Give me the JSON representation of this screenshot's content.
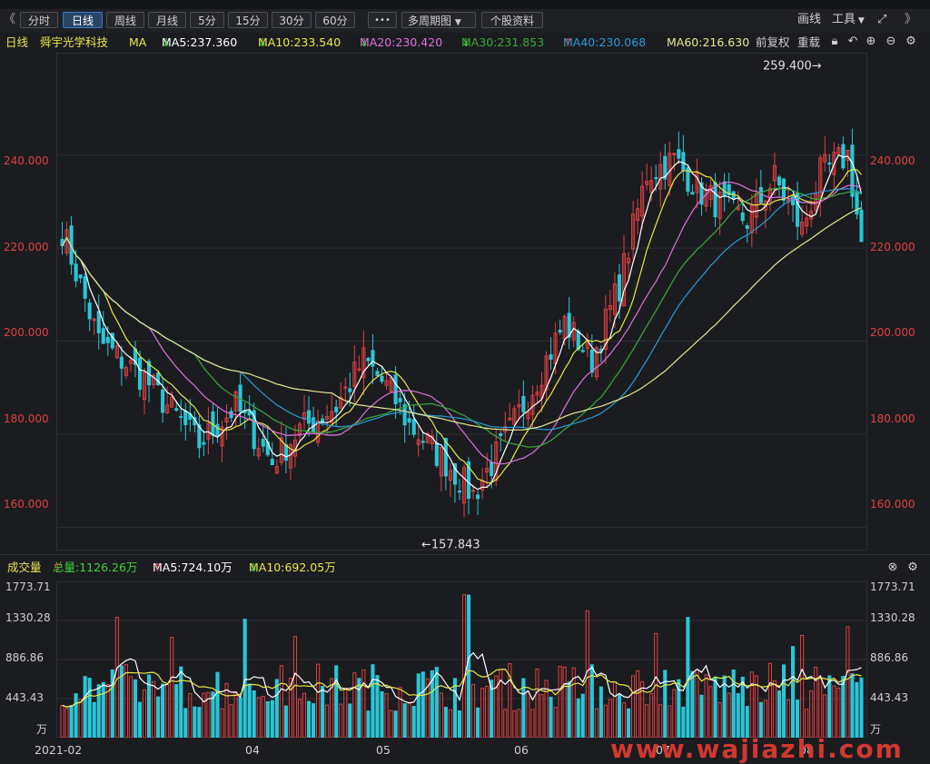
{
  "toolbar": {
    "collapse_icon": "double-chevron-left-icon",
    "buttons": [
      "分时",
      "日线",
      "周线",
      "月线",
      "5分",
      "15分",
      "30分",
      "60分",
      "•••",
      "多周期图",
      "个股资料"
    ],
    "active": "日线",
    "draw_label": "画线",
    "tools_label": "工具",
    "expand_icon": "expand-icon",
    "more_icon": "double-chevron-right-icon"
  },
  "info": {
    "period": "日线",
    "stock_name": "舜宇光学科技",
    "indicator": "MA",
    "ma5": "MA5:237.360",
    "ma10": "MA10:233.540",
    "ma20": "MA20:230.420",
    "ma30": "MA30:231.853",
    "ma40": "MA40:230.068",
    "ma60": "MA60:216.630",
    "adjust": "前复权",
    "overlay": "重载",
    "arrow_down": "↓",
    "arrow_up": "↑"
  },
  "volume": {
    "label": "成交量",
    "total": "总量:1126.26万",
    "ma5": "MA5:724.10万",
    "ma10": "MA10:692.05万",
    "arrow_up": "↑",
    "arrow_down": "↓",
    "unit": "万"
  },
  "price_axis": [
    "240.000",
    "220.000",
    "200.000",
    "180.000",
    "160.000"
  ],
  "volume_axis": [
    "1773.71",
    "1330.28",
    "886.86",
    "443.43"
  ],
  "date_axis": [
    "2021-02",
    "04",
    "05",
    "06",
    "07",
    "08"
  ],
  "annotations": {
    "high": "259.400→",
    "low": "←157.843"
  },
  "watermark": "www.wajiazhi.com",
  "colors": {
    "up": "#e04040",
    "down": "#29c6d6",
    "ma5": "#ffffff",
    "ma10": "#e8e84a",
    "ma20": "#e070e0",
    "ma30": "#3aa83a",
    "ma40": "#2a9ad8",
    "ma60": "#e8e890"
  },
  "chart_data": {
    "type": "candlestick",
    "title": "舜宇光学科技",
    "price_ylim": [
      155,
      262
    ],
    "volume_ylim": [
      0,
      1773.71
    ],
    "high_value": 259.4,
    "low_value": 157.843
  }
}
